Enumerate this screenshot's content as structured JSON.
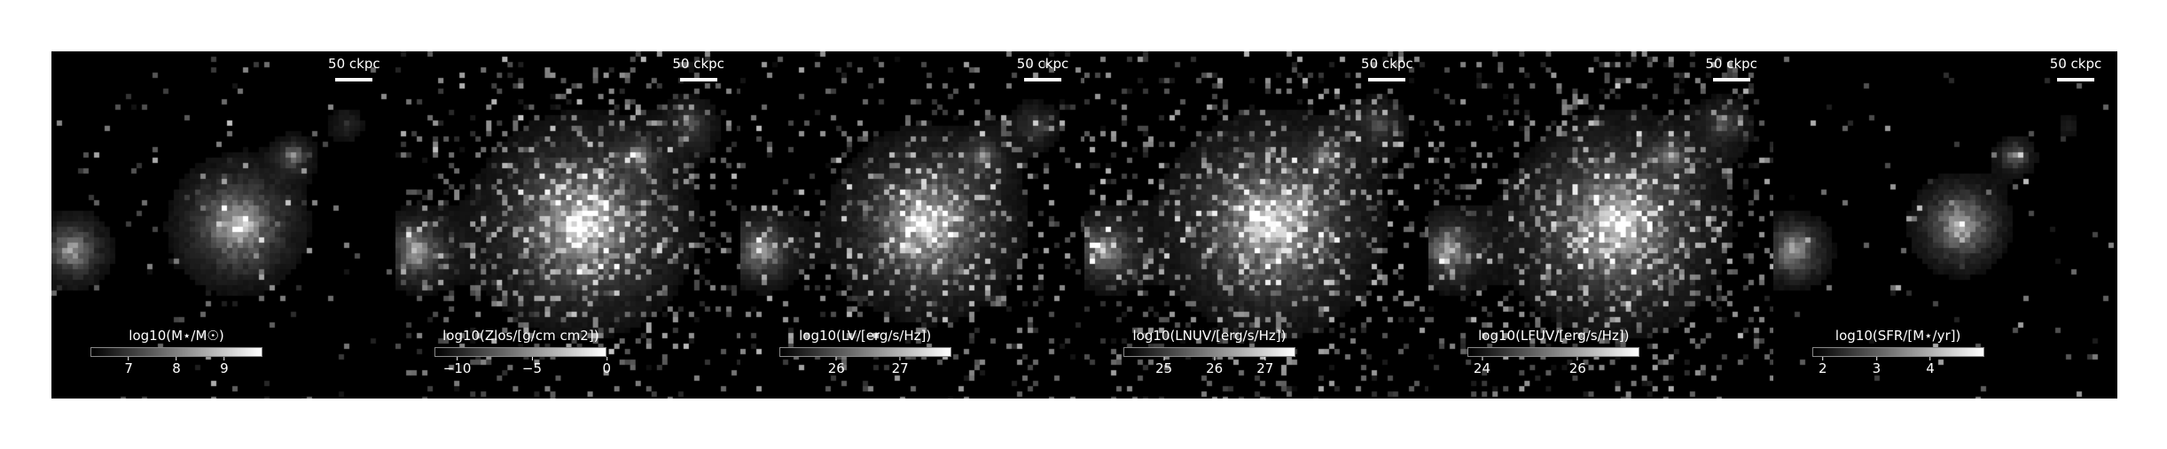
{
  "scale_bar_label": "50 ckpc",
  "panels": [
    {
      "name": "stellar-mass",
      "cbar_label": "log10(M⋆/M☉)",
      "cbar_range": [
        6.2,
        9.8
      ],
      "ticks": [
        {
          "v": 7,
          "t": "7"
        },
        {
          "v": 8,
          "t": "8"
        },
        {
          "v": 9,
          "t": "9"
        }
      ],
      "noise_density": 0.06,
      "halo_scale": 0.55
    },
    {
      "name": "metallicity",
      "cbar_label": "log10(Zlos/[g/cm cm2])",
      "cbar_range": [
        -11.5,
        0
      ],
      "ticks": [
        {
          "v": -10,
          "t": "−10"
        },
        {
          "v": -5,
          "t": "−5"
        },
        {
          "v": 0,
          "t": "0"
        }
      ],
      "noise_density": 0.42,
      "halo_scale": 1.0
    },
    {
      "name": "v-band-luminosity",
      "cbar_label": "log10(LV/[erg/s/Hz])",
      "cbar_range": [
        25.1,
        27.8
      ],
      "ticks": [
        {
          "v": 26,
          "t": "26"
        },
        {
          "v": 27,
          "t": "27"
        }
      ],
      "noise_density": 0.3,
      "halo_scale": 0.85
    },
    {
      "name": "nuv-luminosity",
      "cbar_label": "log10(LNUV/[erg/s/Hz])",
      "cbar_range": [
        24.2,
        27.6
      ],
      "ticks": [
        {
          "v": 25,
          "t": "25"
        },
        {
          "v": 26,
          "t": "26"
        },
        {
          "v": 27,
          "t": "27"
        }
      ],
      "noise_density": 0.45,
      "halo_scale": 1.0
    },
    {
      "name": "fuv-luminosity",
      "cbar_label": "log10(LFUV/[erg/s/Hz])",
      "cbar_range": [
        23.7,
        27.3
      ],
      "ticks": [
        {
          "v": 24,
          "t": "24"
        },
        {
          "v": 26,
          "t": "26"
        }
      ],
      "noise_density": 0.45,
      "halo_scale": 1.0
    },
    {
      "name": "star-formation-rate",
      "cbar_label": "log10(SFR/[M⋆/yr])",
      "cbar_range": [
        1.8,
        5.0
      ],
      "ticks": [
        {
          "v": 2,
          "t": "2"
        },
        {
          "v": 3,
          "t": "3"
        },
        {
          "v": 4,
          "t": "4"
        }
      ],
      "noise_density": 0.04,
      "halo_scale": 0.35
    }
  ]
}
